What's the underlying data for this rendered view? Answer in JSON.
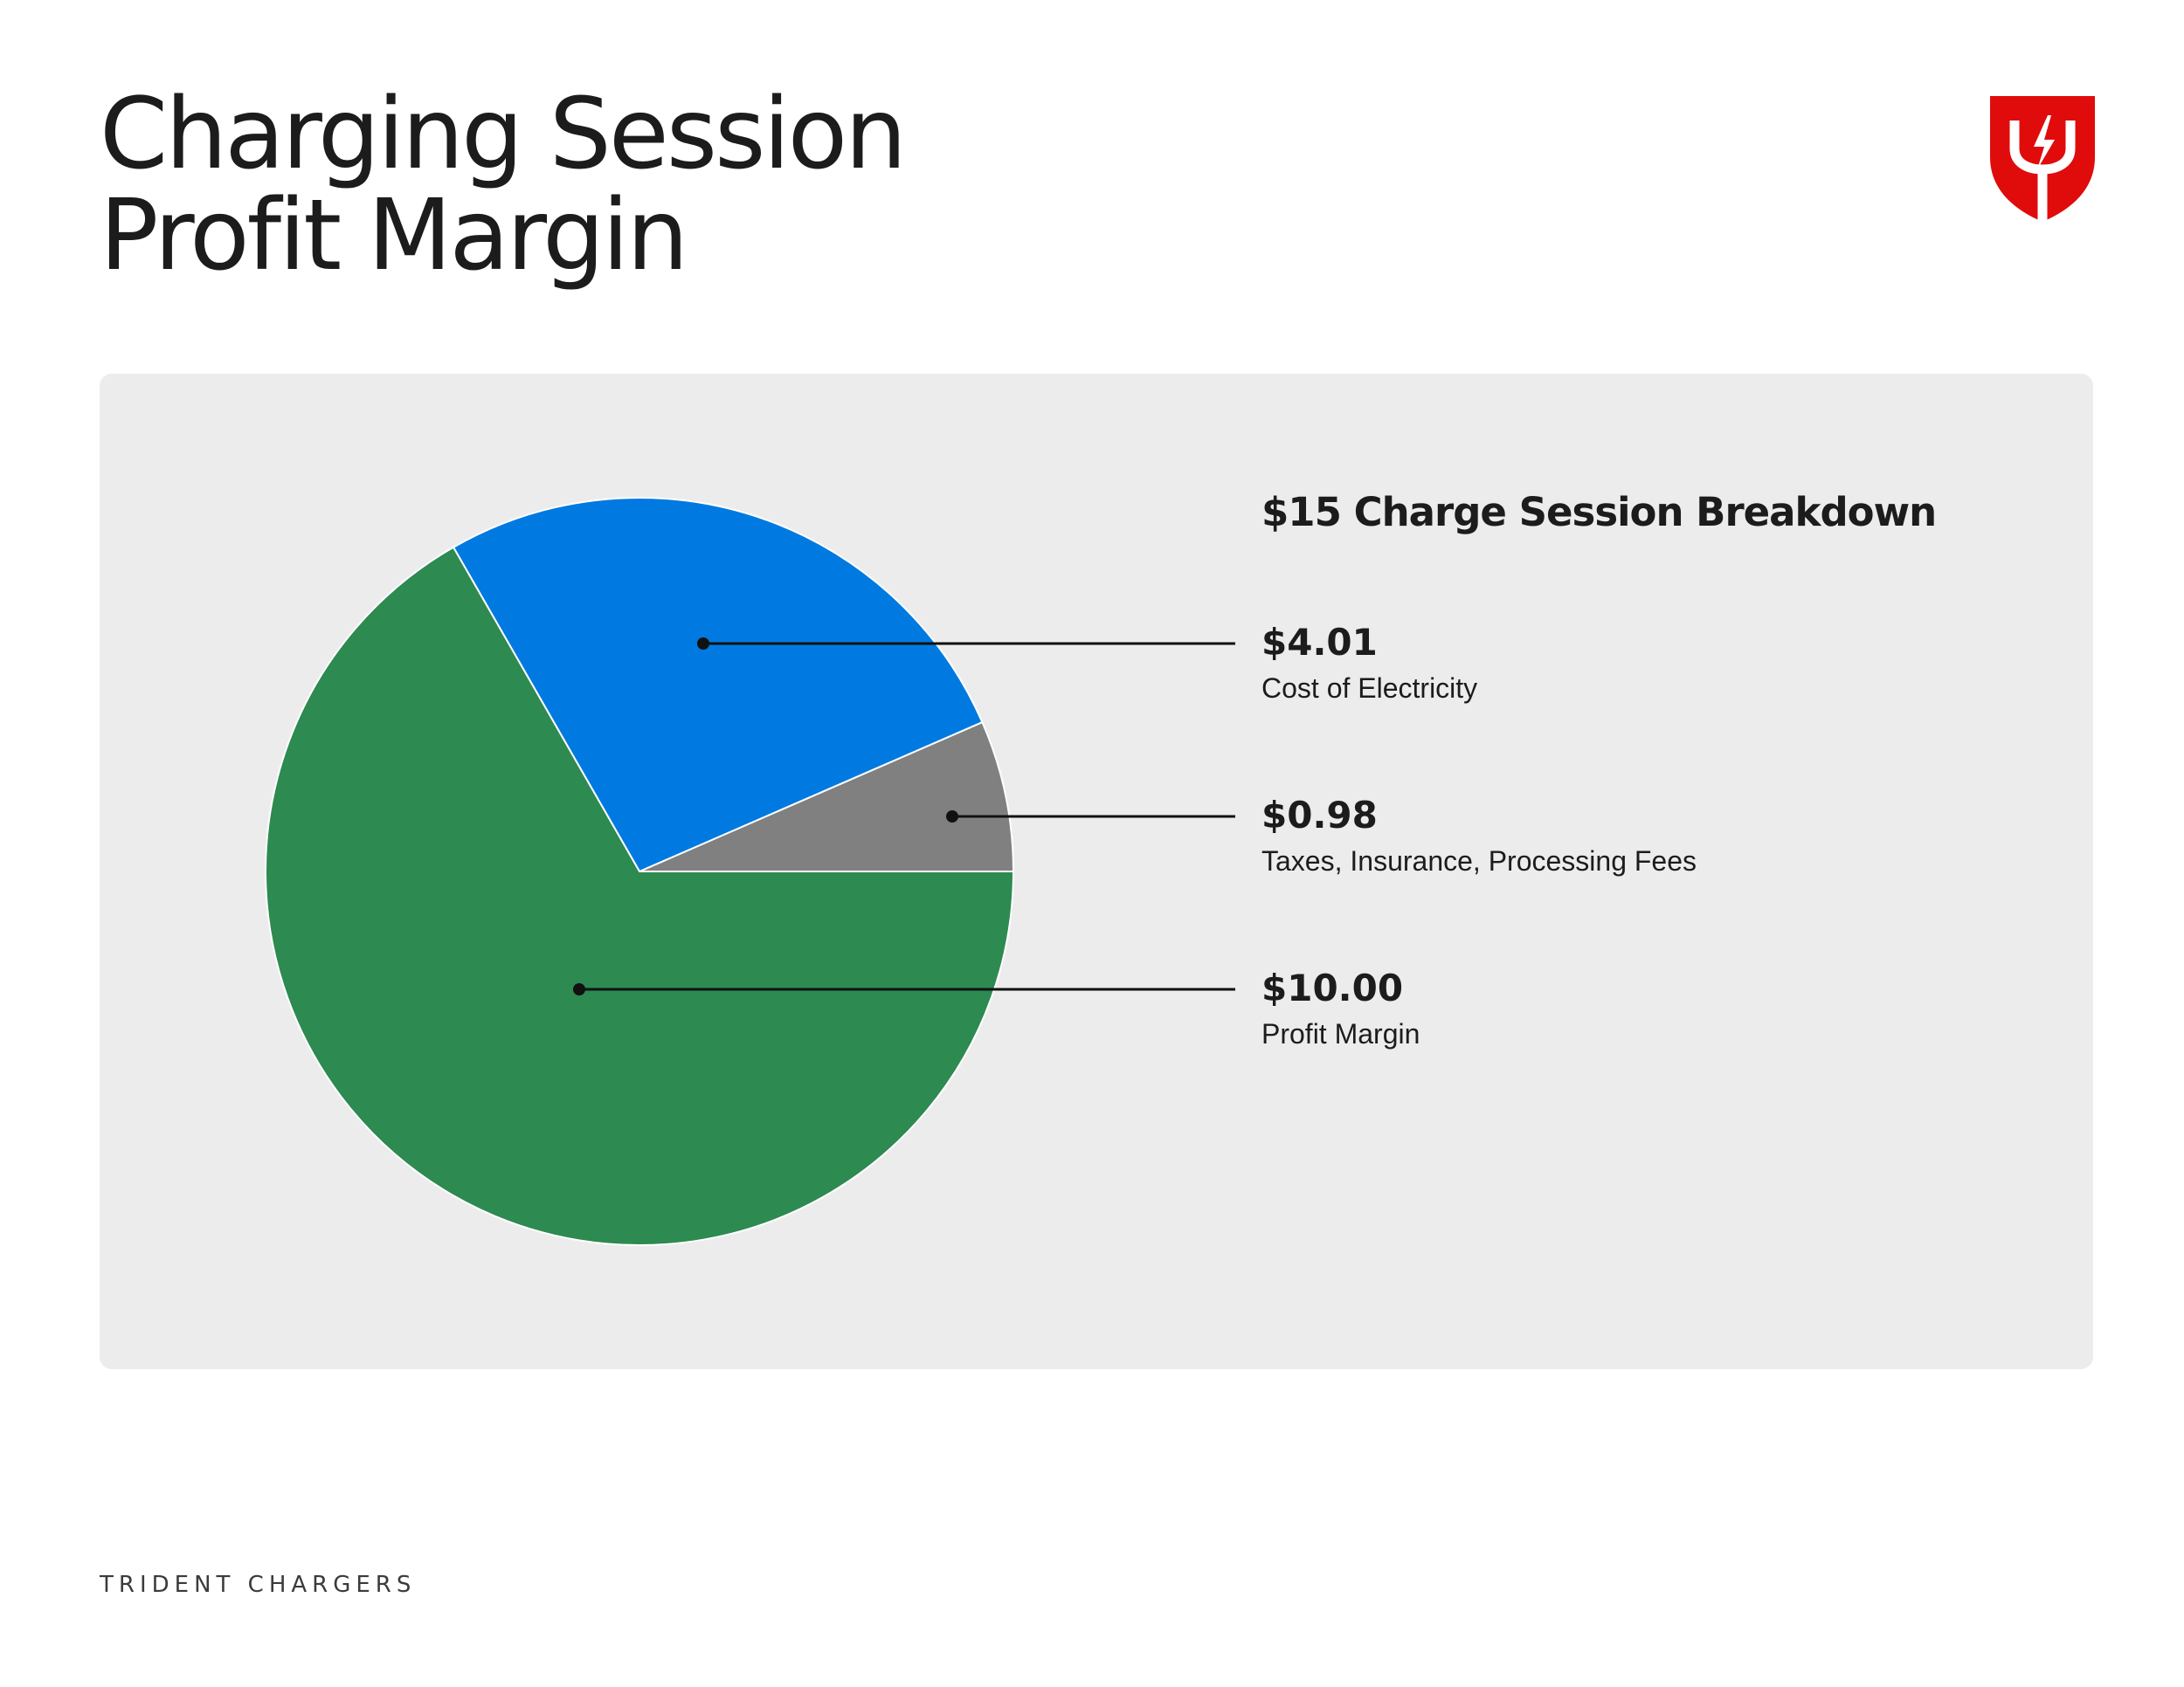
{
  "page": {
    "title_lines": [
      "Charging Session",
      "Profit Margin"
    ],
    "footer_brand": "TRIDENT CHARGERS",
    "logo_icon": "trident-shield-icon"
  },
  "colors": {
    "panel_background": "#ececec",
    "logo_red": "#e00c0c",
    "leader_line": "#111111"
  },
  "chart_data": {
    "type": "pie",
    "title": "$15 Charge Session Breakdown",
    "start_angle_deg": 0,
    "direction": "counterclockwise-from-3-oclock",
    "slices": [
      {
        "label": "Taxes, Insurance, Processing Fees",
        "value": 0.98,
        "value_label": "$0.98",
        "color": "#808080"
      },
      {
        "label": "Cost of Electricity",
        "value": 4.01,
        "value_label": "$4.01",
        "color": "#007ae0"
      },
      {
        "label": "Profit Margin",
        "value": 10.0,
        "value_label": "$10.00",
        "color": "#2d8a50"
      }
    ],
    "legend": {
      "placement": "right",
      "entries": [
        {
          "value_label": "$4.01",
          "label": "Cost of Electricity"
        },
        {
          "value_label": "$0.98",
          "label": "Taxes, Insurance, Processing Fees"
        },
        {
          "value_label": "$10.00",
          "label": "Profit Margin"
        }
      ]
    }
  }
}
